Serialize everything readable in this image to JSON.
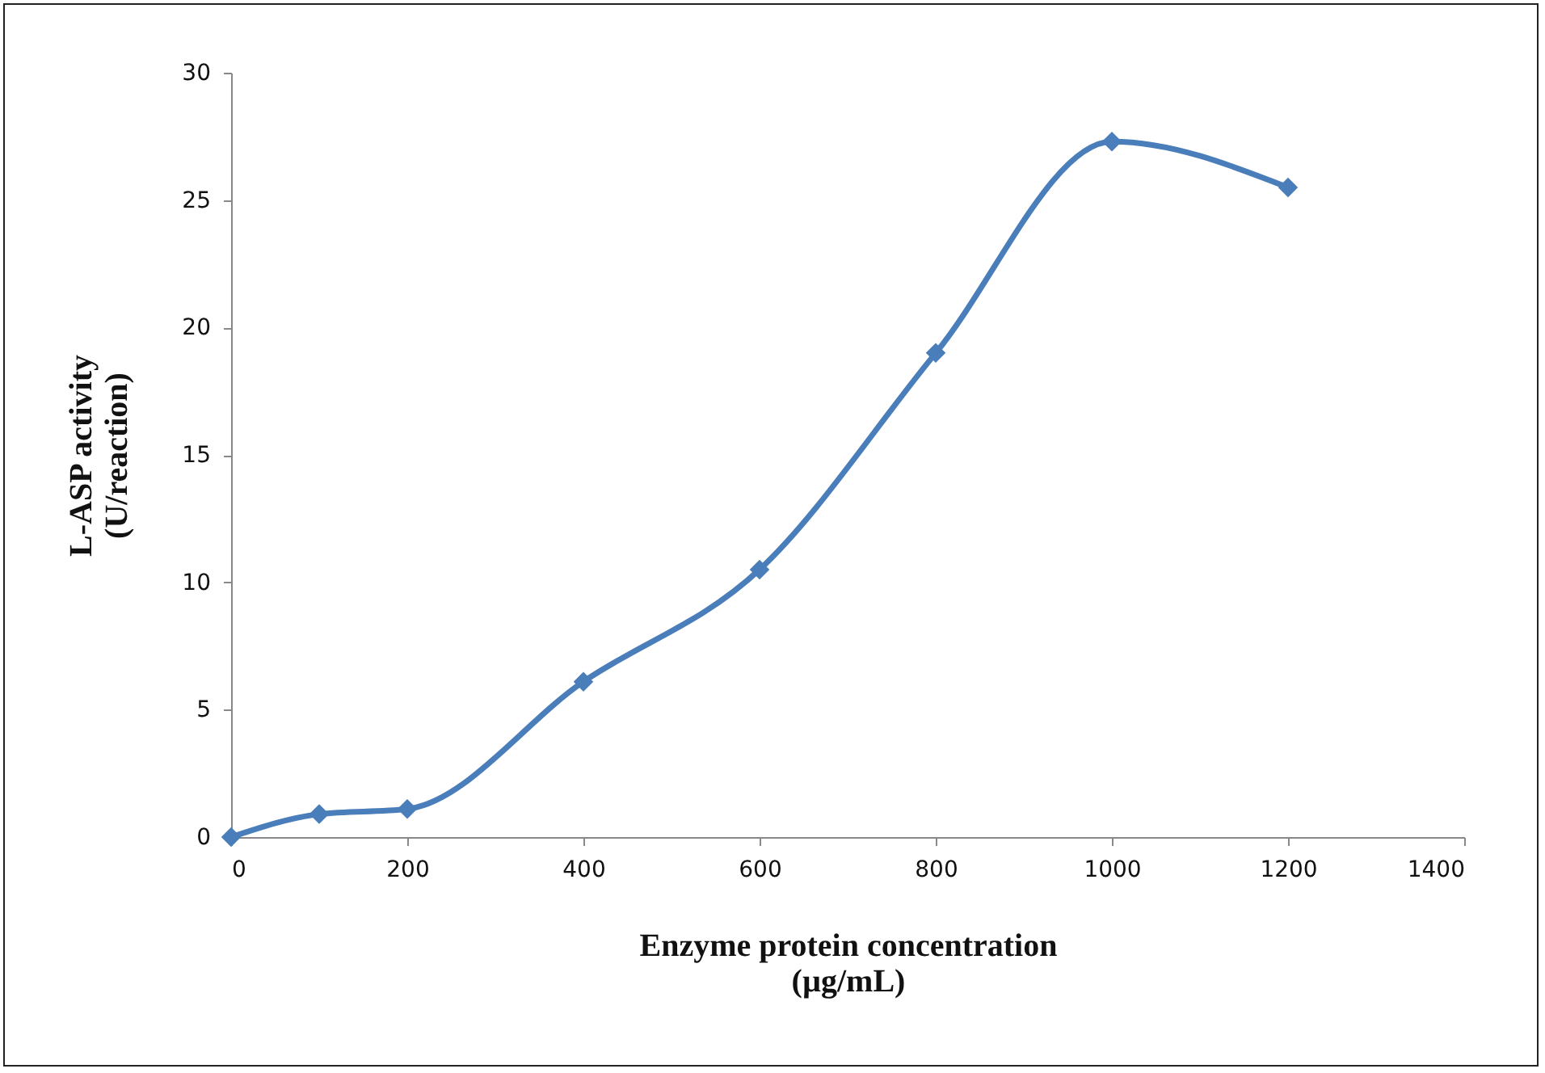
{
  "chart_data": {
    "type": "line",
    "xlabel": "Enzyme protein concentration\n(µg/mL)",
    "ylabel": "L-ASP activity\n(U/reaction)",
    "x": [
      0,
      100,
      200,
      400,
      600,
      800,
      1000,
      1200
    ],
    "series": [
      {
        "color": "#4a7ebb",
        "values": [
          0,
          0.9,
          1.1,
          6.1,
          10.5,
          19,
          27.3,
          25.5
        ]
      }
    ],
    "xlim": [
      0,
      1400
    ],
    "xticks": [
      0,
      200,
      400,
      600,
      800,
      1000,
      1200,
      1400
    ],
    "ylim": [
      0,
      30
    ],
    "yticks": [
      0,
      5,
      10,
      15,
      20,
      25,
      30
    ],
    "grid": false,
    "marker": "diamond",
    "line_style": "solid"
  }
}
